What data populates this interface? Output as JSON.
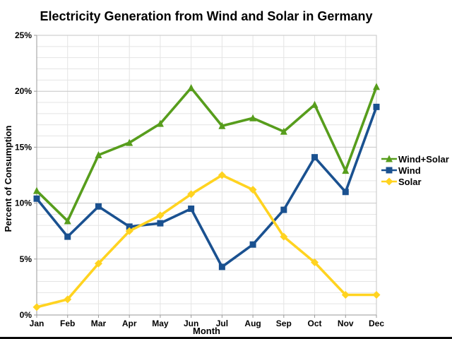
{
  "title": "Electricity Generation from Wind and Solar in Germany",
  "chart_data": {
    "type": "line",
    "title": "Electricity Generation from Wind and Solar in Germany",
    "xlabel": "Month",
    "ylabel": "Percent of Consumption",
    "categories": [
      "Jan",
      "Feb",
      "Mar",
      "Apr",
      "May",
      "Jun",
      "Jul",
      "Aug",
      "Sep",
      "Oct",
      "Nov",
      "Dec"
    ],
    "series": [
      {
        "name": "Wind+Solar",
        "color": "#579D1C",
        "marker": "triangle",
        "values": [
          11.1,
          8.4,
          14.3,
          15.4,
          17.1,
          20.3,
          16.9,
          17.6,
          16.4,
          18.8,
          12.9,
          20.4
        ]
      },
      {
        "name": "Wind",
        "color": "#1A5190",
        "marker": "square",
        "values": [
          10.4,
          7.0,
          9.7,
          7.9,
          8.2,
          9.5,
          4.3,
          6.3,
          9.4,
          14.1,
          11.0,
          18.6
        ]
      },
      {
        "name": "Solar",
        "color": "#FFD320",
        "marker": "diamond",
        "values": [
          0.7,
          1.4,
          4.6,
          7.5,
          8.9,
          10.8,
          12.5,
          11.2,
          7.0,
          4.7,
          1.8,
          1.8
        ]
      }
    ],
    "ylim": [
      0,
      25
    ],
    "y_ticks": [
      {
        "value": 0,
        "label": "0%"
      },
      {
        "value": 5,
        "label": "5%"
      },
      {
        "value": 10,
        "label": "10%"
      },
      {
        "value": 15,
        "label": "15%"
      },
      {
        "value": 20,
        "label": "20%"
      },
      {
        "value": 25,
        "label": "25%"
      }
    ],
    "y_minor_step": 1,
    "grid": true,
    "legend_position": "right",
    "colors": {
      "minor_grid": "#e4e4e4",
      "major_grid": "#c6c6c6",
      "axis": "#9a9a9a",
      "text": "#000000"
    }
  }
}
